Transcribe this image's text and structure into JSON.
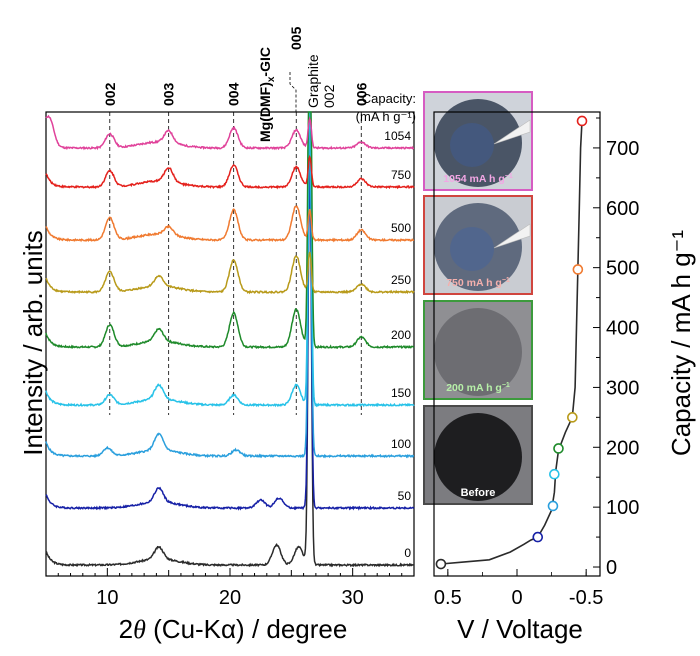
{
  "chart_data": [
    {
      "type": "line",
      "subtype": "stacked-xrd-patterns",
      "xlabel_main": "2",
      "xlabel_theta": "θ",
      "xlabel_rest": " (Cu-Kα) / degree",
      "ylabel": "Intensity / arb. units",
      "xlim": [
        5,
        35
      ],
      "x_ticks": [
        10,
        20,
        30
      ],
      "capacity_header": [
        "Capacity:",
        "(mA h g⁻¹)"
      ],
      "series": [
        {
          "name": "0",
          "color": "#2b2b2b",
          "peak_2theta": 26.5,
          "peak_height": 420,
          "bumps": [
            [
              14.2,
              12
            ],
            [
              23.8,
              20
            ],
            [
              25.6,
              18
            ]
          ]
        },
        {
          "name": "50",
          "color": "#1620a6",
          "peak_2theta": 26.5,
          "peak_height": 340,
          "bumps": [
            [
              14.2,
              14
            ],
            [
              22.5,
              8
            ],
            [
              24.0,
              10
            ]
          ]
        },
        {
          "name": "100",
          "color": "#2a9fdd",
          "peak_2theta": 26.5,
          "peak_height": 330,
          "bumps": [
            [
              10.0,
              8
            ],
            [
              14.2,
              16
            ],
            [
              20.5,
              6
            ]
          ]
        },
        {
          "name": "150",
          "color": "#27c2e8",
          "peak_2theta": 26.5,
          "peak_height": 320,
          "bumps": [
            [
              10.2,
              10
            ],
            [
              14.2,
              14
            ],
            [
              20.3,
              10
            ],
            [
              25.4,
              20
            ]
          ]
        },
        {
          "name": "200",
          "color": "#1e8a2a",
          "peak_2theta": 26.5,
          "peak_height": 380,
          "bumps": [
            [
              10.2,
              22
            ],
            [
              14.2,
              12
            ],
            [
              20.3,
              34
            ],
            [
              25.4,
              38
            ],
            [
              30.7,
              10
            ]
          ]
        },
        {
          "name": "250",
          "color": "#b89a1a",
          "peak_2theta": 26.5,
          "peak_height": 40,
          "bumps": [
            [
              10.2,
              20
            ],
            [
              14.2,
              10
            ],
            [
              20.3,
              32
            ],
            [
              25.4,
              36
            ],
            [
              30.7,
              8
            ]
          ]
        },
        {
          "name": "500",
          "color": "#f07a30",
          "peak_2theta": 26.5,
          "peak_height": 30,
          "bumps": [
            [
              10.2,
              22
            ],
            [
              15.0,
              8
            ],
            [
              20.3,
              30
            ],
            [
              25.4,
              34
            ],
            [
              30.7,
              10
            ]
          ]
        },
        {
          "name": "750",
          "color": "#e4211c",
          "peak_2theta": 26.5,
          "peak_height": 30,
          "bumps": [
            [
              10.2,
              16
            ],
            [
              15.0,
              14
            ],
            [
              20.3,
              22
            ],
            [
              25.4,
              20
            ],
            [
              30.7,
              8
            ]
          ]
        },
        {
          "name": "1054",
          "color": "#e0429a",
          "peak_2theta": 26.5,
          "peak_height": 30,
          "bumps": [
            [
              5.3,
              24
            ],
            [
              10.2,
              14
            ],
            [
              15.0,
              12
            ],
            [
              20.3,
              20
            ],
            [
              25.4,
              18
            ],
            [
              30.7,
              6
            ]
          ]
        }
      ],
      "reference_lines": [
        {
          "label": "002",
          "x": 10.2
        },
        {
          "label": "003",
          "x": 15.0
        },
        {
          "label": "004",
          "x": 20.3
        },
        {
          "label": "005",
          "x": 25.4
        },
        {
          "label": "006",
          "x": 30.7
        }
      ],
      "annotations": {
        "gic_main": "Mg(DMF)",
        "gic_sub": "x",
        "gic_rest": "-GIC",
        "graphite_label": "Graphite",
        "graphite_002": "002",
        "graphite_x": 26.5
      }
    },
    {
      "type": "line",
      "subtype": "charge-curve",
      "xlabel": "V / Voltage",
      "ylabel": "Capacity / mA  h g⁻¹",
      "xlim": [
        0.6,
        -0.6
      ],
      "ylim": [
        0,
        750
      ],
      "x_ticks": [
        0.5,
        0,
        -0.5
      ],
      "x_tick_labels": [
        "0.5",
        "0",
        "-0.5"
      ],
      "y_ticks": [
        0,
        100,
        200,
        300,
        400,
        500,
        600,
        700
      ],
      "curve": [
        [
          0.55,
          5
        ],
        [
          0.4,
          8
        ],
        [
          0.2,
          12
        ],
        [
          0.05,
          25
        ],
        [
          -0.05,
          38
        ],
        [
          -0.1,
          45
        ],
        [
          -0.15,
          50
        ],
        [
          -0.2,
          70
        ],
        [
          -0.25,
          95
        ],
        [
          -0.27,
          125
        ],
        [
          -0.28,
          160
        ],
        [
          -0.3,
          195
        ],
        [
          -0.35,
          225
        ],
        [
          -0.4,
          250
        ],
        [
          -0.42,
          300
        ],
        [
          -0.43,
          400
        ],
        [
          -0.44,
          500
        ],
        [
          -0.45,
          600
        ],
        [
          -0.46,
          700
        ],
        [
          -0.47,
          745
        ]
      ],
      "markers": [
        {
          "v": 0.55,
          "capacity": 5,
          "color": "#2b2b2b"
        },
        {
          "v": -0.15,
          "capacity": 50,
          "color": "#1620a6"
        },
        {
          "v": -0.26,
          "capacity": 102,
          "color": "#2a9fdd"
        },
        {
          "v": -0.27,
          "capacity": 155,
          "color": "#27c2e8"
        },
        {
          "v": -0.3,
          "capacity": 198,
          "color": "#1e8a2a"
        },
        {
          "v": -0.4,
          "capacity": 250,
          "color": "#b89a1a"
        },
        {
          "v": -0.44,
          "capacity": 497,
          "color": "#f07a30"
        },
        {
          "v": -0.47,
          "capacity": 745,
          "color": "#e4211c"
        }
      ]
    }
  ],
  "photos": [
    {
      "label_main": "1054 mA h g",
      "label_sup": "−1",
      "border": "#d65cc2",
      "disc_color": "#4a5566",
      "bg_color": "#cfd3da",
      "label_color": "#f2a6e4",
      "has_tip": true
    },
    {
      "label_main": "750 mA h g",
      "label_sup": "−1",
      "border": "#d0453e",
      "disc_color": "#5f6a7e",
      "bg_color": "#c9ccd2",
      "label_color": "#f5b0ad",
      "has_tip": true
    },
    {
      "label_main": "200 mA h g",
      "label_sup": "−1",
      "border": "#3c9a3c",
      "disc_color": "#6d6d72",
      "bg_color": "#8f8f93",
      "label_color": "#b7f0a8",
      "has_tip": false
    },
    {
      "label_main": "Before",
      "label_sup": "",
      "border": "#4a4a4a",
      "disc_color": "#1e1e20",
      "bg_color": "#7c7c80",
      "label_color": "#ffffff",
      "has_tip": false
    }
  ]
}
